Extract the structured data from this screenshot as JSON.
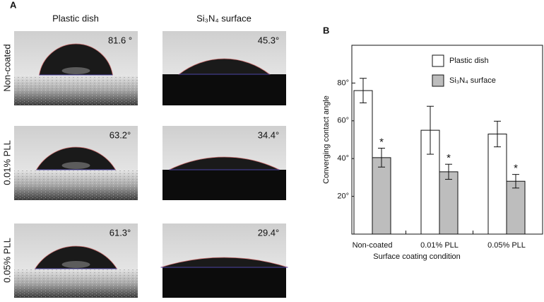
{
  "panel_a": {
    "label": "A",
    "columns": [
      "Plastic dish",
      "Si₃N₄ surface"
    ],
    "rows": [
      "Non-coated",
      "0.01% PLL",
      "0.05% PLL"
    ],
    "angles": [
      [
        "81.6 °",
        "45.3°"
      ],
      [
        "63.2°",
        "34.4°"
      ],
      [
        "61.3°",
        "29.4°"
      ]
    ]
  },
  "chart_data": {
    "type": "bar",
    "label": "B",
    "x_label": "Surface coating condition",
    "y_label": "Converging contact angle",
    "categories": [
      "Non-coated",
      "0.01% PLL",
      "0.05% PLL"
    ],
    "series": [
      {
        "name": "Plastic dish",
        "color": "#ffffff",
        "values": [
          76,
          55,
          53
        ],
        "errors": [
          6.5,
          12.7,
          6.8
        ]
      },
      {
        "name": "Si₃N₄ surface",
        "color": "#bdbdbd",
        "values": [
          40.5,
          33,
          28
        ],
        "errors": [
          5,
          4,
          3.6
        ],
        "markers": [
          "*",
          "*",
          "*"
        ]
      }
    ],
    "ylim": [
      0,
      100
    ],
    "yticks": [
      {
        "value": 20,
        "label": "20°"
      },
      {
        "value": 40,
        "label": "40°"
      },
      {
        "value": 60,
        "label": "60°"
      },
      {
        "value": 80,
        "label": "80°"
      }
    ],
    "legend": "top-right"
  }
}
